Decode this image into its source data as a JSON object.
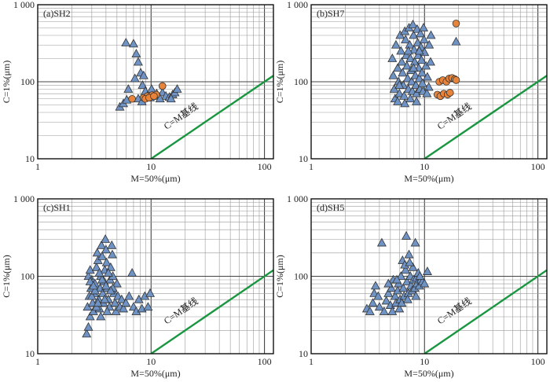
{
  "figure_meta": {
    "marker_colors": {
      "triangle": "#6f93c4",
      "circle": "#e8833a",
      "baseline": "#1a9641",
      "edge": "#333333"
    }
  },
  "chart_data": [
    {
      "type": "scatter",
      "label": "(a)SH2",
      "xlabel": "M=50%(μm)",
      "ylabel": "C=1%(μm)",
      "x_scale": "log",
      "y_scale": "log",
      "xlim": [
        1,
        120
      ],
      "ylim": [
        10,
        1000
      ],
      "x_ticks": [
        "1",
        "10",
        "100"
      ],
      "y_ticks": [
        "10",
        "100",
        "1 000"
      ],
      "baseline_label": "C=M基线",
      "baseline": [
        [
          10,
          10
        ],
        [
          120,
          120
        ]
      ],
      "series": [
        {
          "marker": "triangle",
          "points": [
            [
              5.3,
              47
            ],
            [
              5.7,
              52
            ],
            [
              6.1,
              58
            ],
            [
              6.0,
              320
            ],
            [
              6.3,
              80
            ],
            [
              7.0,
              310
            ],
            [
              7.4,
              230
            ],
            [
              7.7,
              180
            ],
            [
              7.2,
              110
            ],
            [
              8.1,
              130
            ],
            [
              8.6,
              120
            ],
            [
              8.4,
              90
            ],
            [
              8.9,
              75
            ],
            [
              9.3,
              65
            ],
            [
              9.8,
              62
            ],
            [
              10.6,
              65
            ],
            [
              11.2,
              70
            ],
            [
              12.6,
              72
            ],
            [
              13.5,
              65
            ],
            [
              14.5,
              63
            ],
            [
              15.5,
              68
            ],
            [
              16.2,
              72
            ],
            [
              17.0,
              80
            ],
            [
              7.7,
              60
            ],
            [
              8.3,
              55
            ],
            [
              10.1,
              80
            ],
            [
              12.0,
              60
            ],
            [
              15.0,
              60
            ]
          ]
        },
        {
          "marker": "circle",
          "points": [
            [
              6.8,
              60
            ],
            [
              8.6,
              62
            ],
            [
              9.3,
              65
            ],
            [
              10.2,
              67
            ],
            [
              11.1,
              68
            ],
            [
              12.6,
              88
            ],
            [
              8.9,
              60
            ],
            [
              9.6,
              62
            ],
            [
              10.6,
              65
            ]
          ]
        }
      ]
    },
    {
      "type": "scatter",
      "label": "(b)SH7",
      "xlabel": "M=50%(μm)",
      "ylabel": "C=1%(μm)",
      "x_scale": "log",
      "y_scale": "log",
      "xlim": [
        1,
        120
      ],
      "ylim": [
        10,
        1000
      ],
      "x_ticks": [
        "1",
        "10",
        "100"
      ],
      "y_ticks": [
        "10",
        "100",
        "1 000"
      ],
      "baseline_label": "C=M基线",
      "baseline": [
        [
          10,
          10
        ],
        [
          120,
          120
        ]
      ],
      "series": [
        {
          "marker": "triangle",
          "points": [
            [
              5.2,
              200
            ],
            [
              5.3,
              120
            ],
            [
              5.4,
              80
            ],
            [
              5.5,
              60
            ],
            [
              5.6,
              300
            ],
            [
              5.8,
              150
            ],
            [
              5.9,
              100
            ],
            [
              6.0,
              70
            ],
            [
              6.1,
              400
            ],
            [
              6.2,
              250
            ],
            [
              6.3,
              180
            ],
            [
              6.4,
              130
            ],
            [
              6.5,
              90
            ],
            [
              6.6,
              65
            ],
            [
              6.7,
              450
            ],
            [
              6.8,
              350
            ],
            [
              6.9,
              220
            ],
            [
              7.0,
              160
            ],
            [
              7.1,
              110
            ],
            [
              7.2,
              80
            ],
            [
              7.3,
              500
            ],
            [
              7.4,
              300
            ],
            [
              7.5,
              200
            ],
            [
              7.6,
              140
            ],
            [
              7.7,
              100
            ],
            [
              7.8,
              75
            ],
            [
              7.9,
              550
            ],
            [
              8.0,
              400
            ],
            [
              8.1,
              260
            ],
            [
              8.2,
              180
            ],
            [
              8.3,
              120
            ],
            [
              8.4,
              90
            ],
            [
              8.5,
              70
            ],
            [
              8.6,
              480
            ],
            [
              8.7,
              320
            ],
            [
              8.8,
              220
            ],
            [
              8.9,
              150
            ],
            [
              9.0,
              110
            ],
            [
              9.1,
              80
            ],
            [
              9.2,
              420
            ],
            [
              9.3,
              280
            ],
            [
              9.4,
              190
            ],
            [
              9.5,
              130
            ],
            [
              9.6,
              95
            ],
            [
              9.7,
              75
            ],
            [
              9.8,
              500
            ],
            [
              9.9,
              350
            ],
            [
              10.0,
              240
            ],
            [
              10.3,
              160
            ],
            [
              10.6,
              115
            ],
            [
              10.9,
              85
            ],
            [
              11.0,
              300
            ],
            [
              5.8,
              55
            ],
            [
              6.7,
              52
            ],
            [
              7.5,
              60
            ],
            [
              8.5,
              55
            ],
            [
              10.5,
              70
            ],
            [
              11.3,
              180
            ],
            [
              11.4,
              400
            ],
            [
              19.0,
              330
            ],
            [
              6.0,
              90
            ],
            [
              7.2,
              250
            ],
            [
              8.0,
              150
            ],
            [
              9.0,
              250
            ]
          ]
        },
        {
          "marker": "circle",
          "points": [
            [
              13.5,
              100
            ],
            [
              14.5,
              105
            ],
            [
              15.6,
              100
            ],
            [
              16.5,
              110
            ],
            [
              17.5,
              112
            ],
            [
              18.5,
              108
            ],
            [
              19.0,
              105
            ],
            [
              13.0,
              68
            ],
            [
              13.8,
              65
            ],
            [
              14.8,
              70
            ],
            [
              16.0,
              68
            ],
            [
              16.8,
              72
            ],
            [
              19.0,
              570
            ]
          ]
        }
      ]
    },
    {
      "type": "scatter",
      "label": "(c)SH1",
      "xlabel": "M=50%(μm)",
      "ylabel": "C=1%(μm)",
      "x_scale": "log",
      "y_scale": "log",
      "xlim": [
        1,
        120
      ],
      "ylim": [
        10,
        1000
      ],
      "x_ticks": [
        "1",
        "10",
        "100"
      ],
      "y_ticks": [
        "10",
        "100",
        "1 000"
      ],
      "baseline_label": "C=M基线",
      "baseline": [
        [
          10,
          10
        ],
        [
          120,
          120
        ]
      ],
      "series": [
        {
          "marker": "triangle",
          "points": [
            [
              2.7,
              18
            ],
            [
              2.8,
              22
            ],
            [
              2.9,
              30
            ],
            [
              2.75,
              40
            ],
            [
              2.85,
              55
            ],
            [
              2.95,
              70
            ],
            [
              3.0,
              90
            ],
            [
              2.8,
              100
            ],
            [
              2.9,
              120
            ],
            [
              3.05,
              45
            ],
            [
              3.1,
              35
            ],
            [
              3.15,
              60
            ],
            [
              3.2,
              80
            ],
            [
              3.3,
              130
            ],
            [
              3.35,
              200
            ],
            [
              3.4,
              160
            ],
            [
              3.45,
              50
            ],
            [
              3.5,
              38
            ],
            [
              3.55,
              70
            ],
            [
              3.6,
              100
            ],
            [
              3.65,
              250
            ],
            [
              3.7,
              180
            ],
            [
              3.75,
              60
            ],
            [
              3.8,
              45
            ],
            [
              3.85,
              85
            ],
            [
              3.9,
              120
            ],
            [
              3.95,
              300
            ],
            [
              4.0,
              220
            ],
            [
              4.05,
              150
            ],
            [
              4.1,
              70
            ],
            [
              4.2,
              50
            ],
            [
              4.3,
              40
            ],
            [
              4.35,
              90
            ],
            [
              4.4,
              130
            ],
            [
              4.5,
              250
            ],
            [
              4.55,
              190
            ],
            [
              4.6,
              100
            ],
            [
              4.7,
              60
            ],
            [
              4.8,
              45
            ],
            [
              4.9,
              35
            ],
            [
              5.0,
              80
            ],
            [
              5.1,
              55
            ],
            [
              5.3,
              40
            ],
            [
              5.5,
              50
            ],
            [
              5.7,
              38
            ],
            [
              6.0,
              45
            ],
            [
              6.4,
              55
            ],
            [
              6.8,
              110
            ],
            [
              7.0,
              40
            ],
            [
              7.4,
              35
            ],
            [
              7.8,
              50
            ],
            [
              8.3,
              38
            ],
            [
              8.8,
              55
            ],
            [
              9.4,
              40
            ],
            [
              9.8,
              60
            ],
            [
              3.0,
              55
            ],
            [
              3.3,
              40
            ],
            [
              3.7,
              90
            ],
            [
              4.1,
              35
            ],
            [
              4.6,
              70
            ],
            [
              3.2,
              65
            ],
            [
              3.5,
              110
            ],
            [
              3.9,
              50
            ],
            [
              4.4,
              65
            ],
            [
              2.9,
              85
            ],
            [
              3.6,
              30
            ],
            [
              4.2,
              110
            ],
            [
              3.1,
              75
            ],
            [
              3.4,
              45
            ],
            [
              4.0,
              75
            ]
          ]
        }
      ]
    },
    {
      "type": "scatter",
      "label": "(d)SH5",
      "xlabel": "M=50%(μm)",
      "ylabel": "C=1%(μm)",
      "x_scale": "log",
      "y_scale": "log",
      "xlim": [
        1,
        120
      ],
      "ylim": [
        10,
        1000
      ],
      "x_ticks": [
        "1",
        "10",
        "100"
      ],
      "y_ticks": [
        "10",
        "100",
        "1 000"
      ],
      "baseline_label": "C=M基线",
      "baseline": [
        [
          10,
          10
        ],
        [
          120,
          120
        ]
      ],
      "series": [
        {
          "marker": "triangle",
          "points": [
            [
              3.1,
              38
            ],
            [
              3.3,
              35
            ],
            [
              3.5,
              45
            ],
            [
              3.6,
              60
            ],
            [
              3.7,
              75
            ],
            [
              3.9,
              55
            ],
            [
              4.0,
              40
            ],
            [
              4.2,
              270
            ],
            [
              4.4,
              35
            ],
            [
              4.6,
              48
            ],
            [
              4.8,
              60
            ],
            [
              5.0,
              42
            ],
            [
              5.1,
              70
            ],
            [
              5.3,
              90
            ],
            [
              5.5,
              55
            ],
            [
              5.6,
              45
            ],
            [
              5.8,
              65
            ],
            [
              5.9,
              80
            ],
            [
              6.1,
              50
            ],
            [
              6.2,
              100
            ],
            [
              6.4,
              160
            ],
            [
              6.5,
              70
            ],
            [
              6.6,
              55
            ],
            [
              6.8,
              120
            ],
            [
              6.9,
              330
            ],
            [
              7.0,
              85
            ],
            [
              7.2,
              60
            ],
            [
              7.3,
              190
            ],
            [
              7.5,
              100
            ],
            [
              7.6,
              75
            ],
            [
              7.8,
              65
            ],
            [
              7.9,
              130
            ],
            [
              8.0,
              90
            ],
            [
              8.2,
              70
            ],
            [
              8.3,
              270
            ],
            [
              8.5,
              95
            ],
            [
              8.6,
              80
            ],
            [
              8.8,
              110
            ],
            [
              9.0,
              75
            ],
            [
              9.3,
              90
            ],
            [
              9.6,
              85
            ],
            [
              10.0,
              80
            ],
            [
              10.6,
              115
            ],
            [
              5.2,
              35
            ],
            [
              6.0,
              38
            ],
            [
              4.8,
              80
            ],
            [
              6.3,
              45
            ],
            [
              7.1,
              50
            ],
            [
              8.4,
              55
            ],
            [
              5.7,
              90
            ],
            [
              6.7,
              140
            ],
            [
              7.4,
              150
            ],
            [
              9.1,
              100
            ]
          ]
        }
      ]
    }
  ]
}
